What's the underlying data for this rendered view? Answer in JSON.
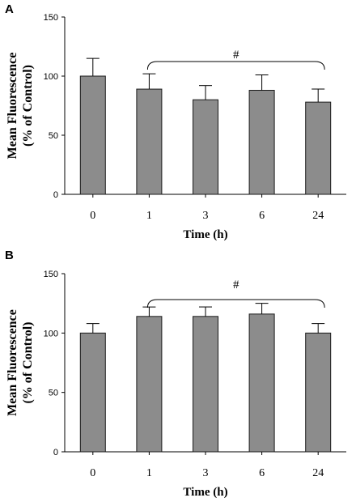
{
  "chart_data": [
    {
      "type": "bar",
      "panel": "A",
      "categories": [
        "0",
        "1",
        "3",
        "6",
        "24"
      ],
      "values": [
        100,
        89,
        80,
        88,
        78
      ],
      "errors": [
        15,
        13,
        12,
        13,
        11
      ],
      "ylabel_line1": "Mean Fluorescence",
      "ylabel_line2": "(% of Control)",
      "xlabel": "Time (h)",
      "ylim": [
        0,
        150
      ],
      "yticks": [
        "0",
        "50",
        "100",
        "150"
      ],
      "significance": {
        "label": "#",
        "from_index": 1,
        "to_index": 4
      },
      "bar_color": "#8c8c8c"
    },
    {
      "type": "bar",
      "panel": "B",
      "categories": [
        "0",
        "1",
        "3",
        "6",
        "24"
      ],
      "values": [
        100,
        114,
        114,
        116,
        100
      ],
      "errors": [
        8,
        8,
        8,
        9,
        8
      ],
      "ylabel_line1": "Mean Fluorescence",
      "ylabel_line2": "(% of Control)",
      "xlabel": "Time (h)",
      "ylim": [
        0,
        150
      ],
      "yticks": [
        "0",
        "50",
        "100",
        "150"
      ],
      "significance": {
        "label": "#",
        "from_index": 1,
        "to_index": 4
      },
      "bar_color": "#8c8c8c"
    }
  ]
}
